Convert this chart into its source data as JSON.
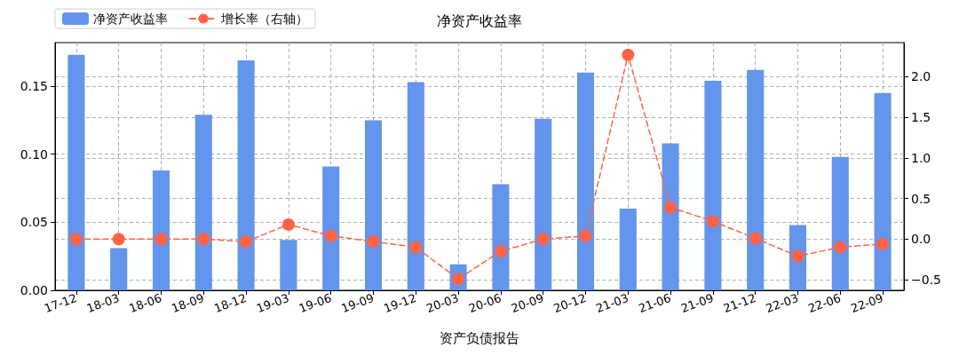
{
  "chart_data": {
    "type": "bar",
    "title": "净资产收益率",
    "xlabel": "资产负债报告",
    "categories": [
      "17-12",
      "18-03",
      "18-06",
      "18-09",
      "18-12",
      "19-03",
      "19-06",
      "19-09",
      "19-12",
      "20-03",
      "20-06",
      "20-09",
      "20-12",
      "21-03",
      "21-06",
      "21-09",
      "21-12",
      "22-03",
      "22-06",
      "22-09"
    ],
    "series": [
      {
        "name": "净资产收益率",
        "color": "#6495ed",
        "values": [
          0.173,
          0.031,
          0.088,
          0.129,
          0.169,
          0.037,
          0.091,
          0.125,
          0.153,
          0.019,
          0.078,
          0.126,
          0.16,
          0.06,
          0.108,
          0.154,
          0.162,
          0.048,
          0.098,
          0.145
        ]
      },
      {
        "name": "增长率（右轴）",
        "type": "line",
        "axis": "y2",
        "color": "#ff6347",
        "values": [
          0,
          0,
          0,
          0,
          -0.03,
          0.18,
          0.04,
          -0.03,
          -0.1,
          -0.49,
          -0.15,
          0,
          0.04,
          2.27,
          0.39,
          0.22,
          0.01,
          -0.21,
          -0.1,
          -0.06
        ]
      }
    ],
    "ylim": [
      0,
      0.182
    ],
    "yticks": [
      {
        "value": 0,
        "label": "0.00"
      },
      0.05,
      {
        "value": 0.1,
        "label": "0.10"
      },
      0.15
    ],
    "y2lim": [
      -0.63,
      2.42
    ],
    "y2ticks": [
      {
        "value": -0.5,
        "label": "−0.5"
      },
      {
        "value": 0,
        "label": "0.0"
      },
      0.5,
      {
        "value": 1,
        "label": "1.0"
      },
      1.5,
      {
        "value": 2,
        "label": "2.0"
      }
    ],
    "marker": "circle",
    "line_style": "dashed",
    "grid": true,
    "legend": "top left"
  }
}
